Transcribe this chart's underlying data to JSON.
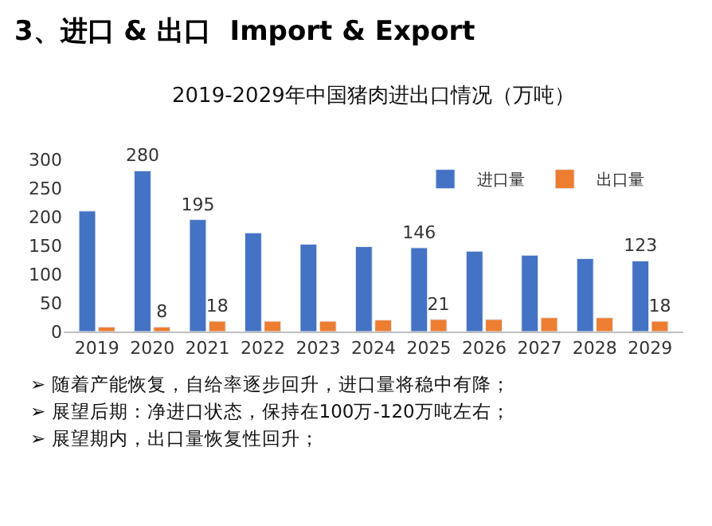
{
  "chart_data": {
    "type": "bar",
    "title": "3、进口 & 出口  Import & Export",
    "subtitle": "2019-2029年中国猪肉进出口情况（万吨）",
    "categories": [
      "2019",
      "2020",
      "2021",
      "2022",
      "2023",
      "2024",
      "2025",
      "2026",
      "2027",
      "2028",
      "2029"
    ],
    "series": [
      {
        "name": "进口量",
        "color": "#4472c4",
        "values": [
          210,
          280,
          195,
          172,
          152,
          148,
          146,
          140,
          133,
          127,
          123
        ],
        "value_labels": [
          null,
          "280",
          "195",
          null,
          null,
          null,
          "146",
          null,
          null,
          null,
          "123"
        ]
      },
      {
        "name": "出口量",
        "color": "#ed7d31",
        "values": [
          8,
          8,
          18,
          18,
          18,
          20,
          21,
          21,
          24,
          24,
          18
        ],
        "value_labels": [
          null,
          "8",
          "18",
          null,
          null,
          null,
          "21",
          null,
          null,
          null,
          "18"
        ]
      }
    ],
    "ylim": [
      0,
      300
    ],
    "yticks": [
      0,
      50,
      100,
      150,
      200,
      250,
      300
    ],
    "legend": "top right",
    "annotations": [
      "➢ 随着产能恢复，自给率逐步回升，进口量将稳中有降；",
      "➢ 展望后期：净进口状态，保持在100万-120万吨左右；",
      "➢ 展望期内，出口量恢复性回升；"
    ]
  }
}
